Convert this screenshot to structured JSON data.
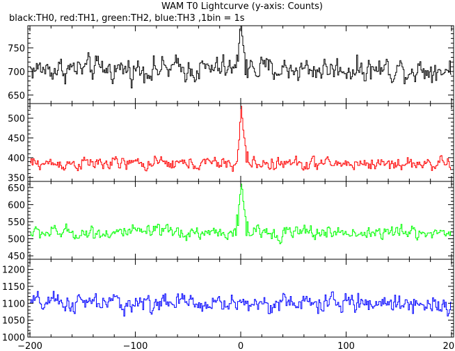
{
  "chart_data": {
    "type": "line",
    "title": "WAM T0 Lightcurve (y-axis: Counts)",
    "subtitle": "black:TH0, red:TH1, green:TH2, blue:TH3 ,1bin = 1s",
    "xlim": [
      -202,
      202
    ],
    "x_ticks": [
      -200,
      -100,
      0,
      100,
      200
    ],
    "x_tick_labels": [
      "−200",
      "−100",
      "0",
      "100",
      "200"
    ],
    "grid": false,
    "panels": [
      {
        "name": "TH0",
        "color": "#000000",
        "ylim": [
          632,
          797
        ],
        "y_ticks": [
          650,
          700,
          750
        ],
        "baseline": 705,
        "noise": 28,
        "peak_x": [
          -4,
          -2,
          -1,
          0,
          1,
          2,
          3,
          5
        ],
        "peak_y": [
          735,
          760,
          790,
          797,
          775,
          755,
          740,
          725
        ]
      },
      {
        "name": "TH1",
        "color": "#ff0000",
        "ylim": [
          340,
          537
        ],
        "y_ticks": [
          350,
          400,
          450,
          500
        ],
        "baseline": 385,
        "noise": 18,
        "peak_x": [
          -3,
          -2,
          -1,
          0,
          1,
          2,
          3,
          4,
          6
        ],
        "peak_y": [
          420,
          445,
          490,
          530,
          500,
          470,
          450,
          430,
          415
        ]
      },
      {
        "name": "TH2",
        "color": "#00ff00",
        "ylim": [
          440,
          668
        ],
        "y_ticks": [
          450,
          500,
          550,
          600,
          650
        ],
        "baseline": 518,
        "noise": 22,
        "peak_x": [
          -4,
          -2,
          -1,
          0,
          1,
          2,
          3,
          4,
          6
        ],
        "peak_y": [
          570,
          600,
          630,
          660,
          645,
          610,
          585,
          565,
          550
        ]
      },
      {
        "name": "TH3",
        "color": "#0000ff",
        "ylim": [
          1000,
          1230
        ],
        "y_ticks": [
          1000,
          1050,
          1100,
          1150,
          1200
        ],
        "baseline": 1100,
        "noise": 30,
        "peak_x": [],
        "peak_y": []
      }
    ]
  }
}
